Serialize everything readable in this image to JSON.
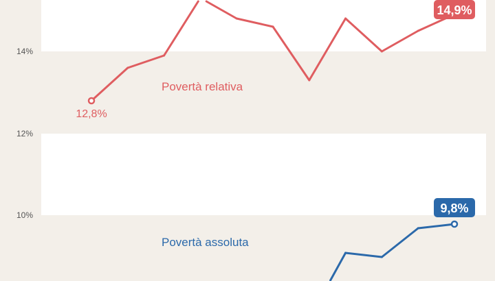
{
  "chart_data": {
    "type": "line",
    "y_ticks": [
      "14%",
      "12%",
      "10%"
    ],
    "y_tick_values": [
      14,
      12,
      10
    ],
    "ylim": [
      8.4,
      15.25
    ],
    "x_count": 11,
    "grid": "alternating bands",
    "series": [
      {
        "name": "Povertà relativa",
        "color": "#df5d60",
        "values": [
          12.8,
          13.6,
          13.9,
          15.3,
          14.8,
          14.6,
          13.3,
          14.8,
          14.0,
          14.5,
          14.9
        ],
        "start_label": "12,8%",
        "end_label": "14,9%"
      },
      {
        "name": "Povertà assoluta",
        "color": "#2b69aa",
        "values": [
          null,
          null,
          null,
          null,
          null,
          null,
          7.5,
          9.1,
          9.0,
          9.7,
          9.8
        ],
        "end_label": "9,8%"
      }
    ]
  }
}
